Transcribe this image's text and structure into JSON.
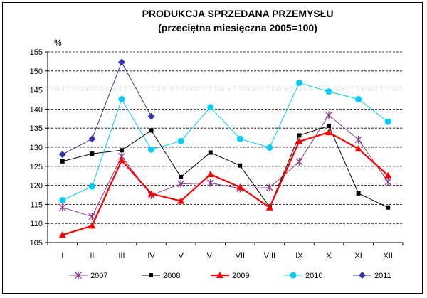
{
  "chart_data": {
    "type": "line",
    "title": "PRODUKCJA SPRZEDANA PRZEMYSŁU",
    "subtitle": "(przeciętna miesięczna 2005=100)",
    "ylabel": "%",
    "xlabel": "",
    "categories": [
      "I",
      "II",
      "III",
      "IV",
      "V",
      "VI",
      "VII",
      "VIII",
      "IX",
      "X",
      "XI",
      "XII"
    ],
    "ylim": [
      105,
      155
    ],
    "yticks": [
      105,
      110,
      115,
      120,
      125,
      130,
      135,
      140,
      145,
      150,
      155
    ],
    "grid": true,
    "legend_position": "bottom",
    "series": [
      {
        "name": "2007",
        "color": "#8b3a8b",
        "marker": "star",
        "values": [
          114.2,
          111.8,
          127.6,
          117.4,
          120.4,
          120.6,
          119.2,
          119.4,
          126.2,
          138.4,
          132.0,
          120.9
        ]
      },
      {
        "name": "2008",
        "color": "#000000",
        "marker": "square",
        "values": [
          126.3,
          128.3,
          129.2,
          134.4,
          122.2,
          128.6,
          125.2,
          114.3,
          133.1,
          135.6,
          117.9,
          114.2
        ]
      },
      {
        "name": "2009",
        "color": "#ff0000",
        "marker": "triangle",
        "values": [
          107.0,
          109.4,
          126.6,
          117.8,
          115.9,
          122.9,
          119.5,
          114.2,
          131.5,
          133.9,
          129.6,
          122.6
        ]
      },
      {
        "name": "2010",
        "color": "#00ccff",
        "marker": "circle",
        "values": [
          116.1,
          119.7,
          142.6,
          129.4,
          131.6,
          140.5,
          132.2,
          129.9,
          146.9,
          144.6,
          142.6,
          136.7
        ]
      },
      {
        "name": "2011",
        "color": "#3333aa",
        "marker": "diamond",
        "values": [
          128.1,
          132.2,
          152.3,
          138.1,
          null,
          null,
          null,
          null,
          null,
          null,
          null,
          null
        ]
      }
    ]
  }
}
